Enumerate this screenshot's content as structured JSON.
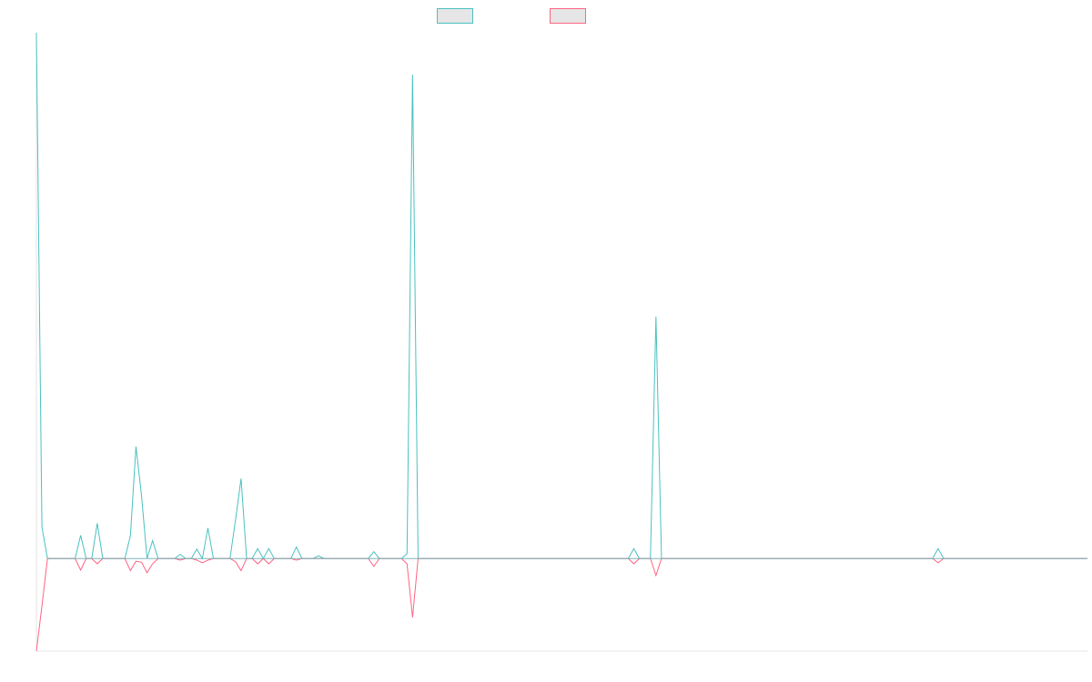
{
  "chart_data": {
    "type": "line",
    "title": "",
    "xlabel": "",
    "ylabel": "",
    "grid": false,
    "legend_position": "top-center",
    "x_count": 190,
    "series": [
      {
        "name": "",
        "color": "#4bc0c0",
        "fill": "#e6e6e6",
        "points": [
          [
            0,
            100
          ],
          [
            1,
            6
          ],
          [
            2,
            0
          ],
          [
            7,
            0
          ],
          [
            8,
            4.4
          ],
          [
            9,
            0
          ],
          [
            10,
            0
          ],
          [
            11,
            6.7
          ],
          [
            12,
            0
          ],
          [
            16,
            0
          ],
          [
            17,
            4.4
          ],
          [
            18,
            21.3
          ],
          [
            19,
            12
          ],
          [
            20,
            0
          ],
          [
            21,
            3.4
          ],
          [
            22,
            0
          ],
          [
            25,
            0
          ],
          [
            26,
            0.8
          ],
          [
            27,
            0
          ],
          [
            28,
            0
          ],
          [
            29,
            1.8
          ],
          [
            30,
            0
          ],
          [
            31,
            5.8
          ],
          [
            32,
            0
          ],
          [
            35,
            0
          ],
          [
            36,
            7.4
          ],
          [
            37,
            15.2
          ],
          [
            38,
            0
          ],
          [
            39,
            0
          ],
          [
            40,
            1.9
          ],
          [
            41,
            0
          ],
          [
            42,
            1.9
          ],
          [
            43,
            0
          ],
          [
            46,
            0
          ],
          [
            47,
            2.2
          ],
          [
            48,
            0
          ],
          [
            50,
            0
          ],
          [
            51,
            0.5
          ],
          [
            52,
            0
          ],
          [
            53,
            0
          ],
          [
            60,
            0
          ],
          [
            61,
            1.3
          ],
          [
            62,
            0
          ],
          [
            63,
            0
          ],
          [
            66,
            0
          ],
          [
            67,
            0.9
          ],
          [
            68,
            92
          ],
          [
            69,
            0
          ],
          [
            71,
            0
          ],
          [
            72,
            0
          ],
          [
            107,
            0
          ],
          [
            108,
            1.9
          ],
          [
            109,
            0
          ],
          [
            111,
            0
          ],
          [
            112,
            46
          ],
          [
            113,
            0
          ],
          [
            162,
            0
          ],
          [
            163,
            1.9
          ],
          [
            164,
            0
          ],
          [
            190,
            0
          ]
        ]
      },
      {
        "name": "",
        "color": "#ff6384",
        "fill": "#e6e6e6",
        "points": [
          [
            0,
            -17.6
          ],
          [
            1,
            -9
          ],
          [
            2,
            0
          ],
          [
            7,
            0
          ],
          [
            8,
            -2.2
          ],
          [
            9,
            0
          ],
          [
            10,
            0
          ],
          [
            11,
            -1
          ],
          [
            12,
            0
          ],
          [
            16,
            0
          ],
          [
            17,
            -2.3
          ],
          [
            18,
            -0.5
          ],
          [
            19,
            -0.7
          ],
          [
            20,
            -2.7
          ],
          [
            21,
            -1
          ],
          [
            22,
            0
          ],
          [
            25,
            0
          ],
          [
            26,
            -0.3
          ],
          [
            27,
            0
          ],
          [
            28,
            0
          ],
          [
            29,
            -0.3
          ],
          [
            30,
            -0.8
          ],
          [
            31,
            -0.3
          ],
          [
            32,
            0
          ],
          [
            35,
            0
          ],
          [
            36,
            -0.6
          ],
          [
            37,
            -2.3
          ],
          [
            38,
            0
          ],
          [
            39,
            0
          ],
          [
            40,
            -1
          ],
          [
            41,
            0
          ],
          [
            42,
            -1
          ],
          [
            43,
            0
          ],
          [
            46,
            0
          ],
          [
            47,
            -0.3
          ],
          [
            48,
            0
          ],
          [
            60,
            0
          ],
          [
            61,
            -1.5
          ],
          [
            62,
            0
          ],
          [
            63,
            0
          ],
          [
            66,
            0
          ],
          [
            67,
            -1
          ],
          [
            68,
            -11.2
          ],
          [
            69,
            0
          ],
          [
            71,
            0
          ],
          [
            72,
            0
          ],
          [
            107,
            0
          ],
          [
            108,
            -1
          ],
          [
            109,
            0
          ],
          [
            111,
            0
          ],
          [
            112,
            -3.2
          ],
          [
            113,
            0
          ],
          [
            162,
            0
          ],
          [
            163,
            -0.8
          ],
          [
            164,
            0
          ],
          [
            190,
            0
          ]
        ]
      }
    ],
    "ylim": [
      -17.6,
      100
    ]
  }
}
